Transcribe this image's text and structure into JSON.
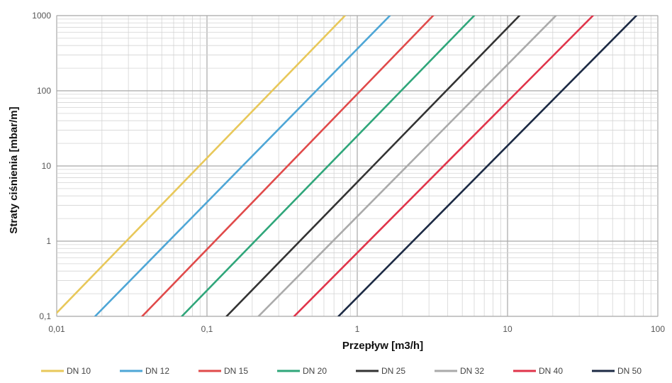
{
  "chart_data": {
    "type": "line",
    "xlabel": "Przepływ [m3/h]",
    "ylabel": "Straty ciśnienia [mbar/m]",
    "x_scale": "log",
    "y_scale": "log",
    "xlim": [
      0.01,
      100
    ],
    "ylim": [
      0.1,
      1000
    ],
    "x_ticks": [
      {
        "value": 0.01,
        "label": "0,01"
      },
      {
        "value": 0.1,
        "label": "0,1"
      },
      {
        "value": 1,
        "label": "1"
      },
      {
        "value": 10,
        "label": "10"
      },
      {
        "value": 100,
        "label": "100"
      }
    ],
    "y_ticks": [
      {
        "value": 0.1,
        "label": "0,1"
      },
      {
        "value": 1,
        "label": "1"
      },
      {
        "value": 10,
        "label": "10"
      },
      {
        "value": 100,
        "label": "100"
      },
      {
        "value": 1000,
        "label": "1000"
      }
    ],
    "grid": true,
    "legend_position": "bottom",
    "series": [
      {
        "name": "DN 10",
        "color": "#e8c85a",
        "x": [
          0.0095,
          0.83
        ],
        "y": [
          0.1,
          1000
        ]
      },
      {
        "name": "DN 12",
        "color": "#4ea6d6",
        "x": [
          0.018,
          1.65
        ],
        "y": [
          0.1,
          1000
        ]
      },
      {
        "name": "DN 15",
        "color": "#e04a4a",
        "x": [
          0.037,
          3.2
        ],
        "y": [
          0.1,
          1000
        ]
      },
      {
        "name": "DN 20",
        "color": "#2fa67a",
        "x": [
          0.068,
          6.0
        ],
        "y": [
          0.1,
          1000
        ]
      },
      {
        "name": "DN 25",
        "color": "#333333",
        "x": [
          0.135,
          12.0
        ],
        "y": [
          0.1,
          1000
        ]
      },
      {
        "name": "DN 32",
        "color": "#aaaaaa",
        "x": [
          0.22,
          21.0
        ],
        "y": [
          0.1,
          1000
        ]
      },
      {
        "name": "DN 40",
        "color": "#e0344a",
        "x": [
          0.38,
          37.0
        ],
        "y": [
          0.1,
          1000
        ]
      },
      {
        "name": "DN 50",
        "color": "#1c2a44",
        "x": [
          0.75,
          72.0
        ],
        "y": [
          0.1,
          1000
        ]
      }
    ]
  }
}
